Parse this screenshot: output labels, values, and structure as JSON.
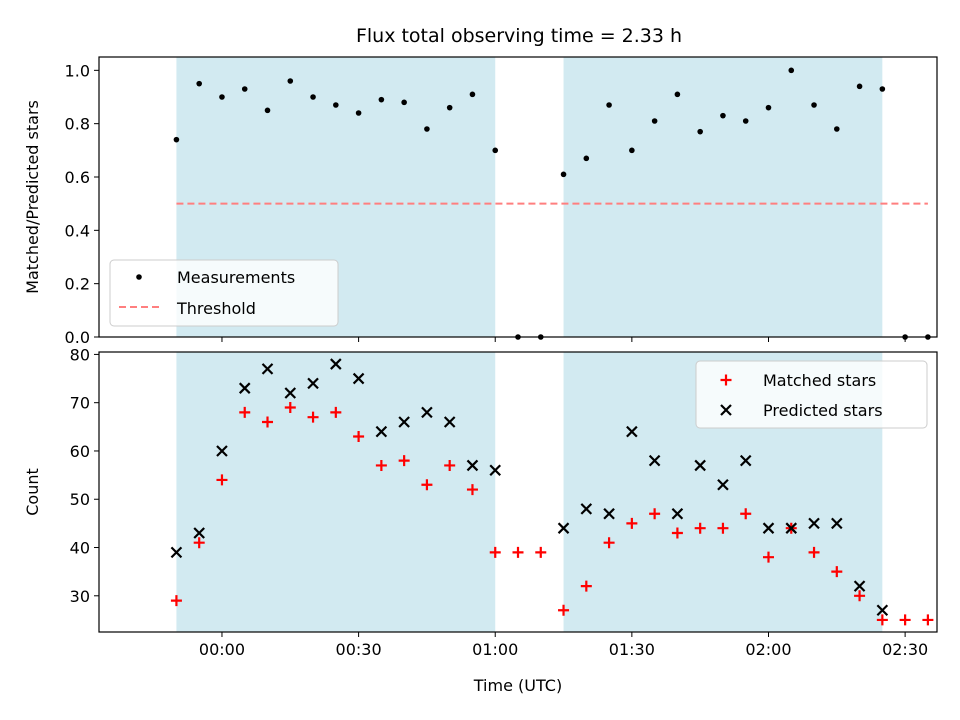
{
  "figure_title": "Flux total observing time = 2.33 h",
  "colors": {
    "shade": "#add8e6",
    "measurement": "#000000",
    "threshold": "#ff7f7f",
    "matched": "#ff0000",
    "predicted": "#000000"
  },
  "chart_data": [
    {
      "type": "scatter",
      "ylabel": "Matched/Predicted stars",
      "xlabel": "",
      "xlim": [
        "23:33",
        "02:37"
      ],
      "ylim": [
        0,
        1.05
      ],
      "yticks": [
        0.0,
        0.2,
        0.4,
        0.6,
        0.8,
        1.0
      ],
      "ytick_labels": [
        "0.0",
        "0.2",
        "0.4",
        "0.6",
        "0.8",
        "1.0"
      ],
      "grid": false,
      "legend_position": "lower-left",
      "shaded_intervals": [
        [
          "23:50",
          "01:00"
        ],
        [
          "01:15",
          "02:25"
        ]
      ],
      "series": [
        {
          "name": "Measurements",
          "marker": "dot",
          "x": [
            "23:50",
            "23:55",
            "00:00",
            "00:05",
            "00:10",
            "00:15",
            "00:20",
            "00:25",
            "00:30",
            "00:35",
            "00:40",
            "00:45",
            "00:50",
            "00:55",
            "01:00",
            "01:05",
            "01:10",
            "01:15",
            "01:20",
            "01:25",
            "01:30",
            "01:35",
            "01:40",
            "01:45",
            "01:50",
            "01:55",
            "02:00",
            "02:05",
            "02:10",
            "02:15",
            "02:20",
            "02:25",
            "02:30",
            "02:35"
          ],
          "y": [
            0.74,
            0.95,
            0.9,
            0.93,
            0.85,
            0.96,
            0.9,
            0.87,
            0.84,
            0.89,
            0.88,
            0.78,
            0.86,
            0.91,
            0.7,
            0.0,
            0.0,
            0.61,
            0.67,
            0.87,
            0.7,
            0.81,
            0.91,
            0.77,
            0.83,
            0.81,
            0.86,
            1.0,
            0.87,
            0.78,
            0.94,
            0.93,
            0.0,
            0.0
          ]
        },
        {
          "name": "Threshold",
          "marker": "dashed-line",
          "x": [
            "23:50",
            "02:35"
          ],
          "y": [
            0.5,
            0.5
          ]
        }
      ]
    },
    {
      "type": "scatter",
      "ylabel": "Count",
      "xlabel": "Time (UTC)",
      "xlim": [
        "23:33",
        "02:37"
      ],
      "ylim": [
        22.5,
        80.5
      ],
      "yticks": [
        30,
        40,
        50,
        60,
        70,
        80
      ],
      "ytick_labels": [
        "30",
        "40",
        "50",
        "60",
        "70",
        "80"
      ],
      "xticks": [
        "00:00",
        "00:30",
        "01:00",
        "01:30",
        "02:00",
        "02:30"
      ],
      "xtick_labels": [
        "00:00",
        "00:30",
        "01:00",
        "01:30",
        "02:00",
        "02:30"
      ],
      "grid": false,
      "legend_position": "upper-right",
      "shaded_intervals": [
        [
          "23:50",
          "01:00"
        ],
        [
          "01:15",
          "02:25"
        ]
      ],
      "series": [
        {
          "name": "Matched stars",
          "marker": "plus",
          "x": [
            "23:50",
            "23:55",
            "00:00",
            "00:05",
            "00:10",
            "00:15",
            "00:20",
            "00:25",
            "00:30",
            "00:35",
            "00:40",
            "00:45",
            "00:50",
            "00:55",
            "01:00",
            "01:05",
            "01:10",
            "01:15",
            "01:20",
            "01:25",
            "01:30",
            "01:35",
            "01:40",
            "01:45",
            "01:50",
            "01:55",
            "02:00",
            "02:05",
            "02:10",
            "02:15",
            "02:20",
            "02:25",
            "02:30",
            "02:35"
          ],
          "y": [
            29,
            41,
            54,
            68,
            66,
            69,
            67,
            68,
            63,
            57,
            58,
            53,
            57,
            52,
            39,
            39,
            39,
            27,
            32,
            41,
            45,
            47,
            43,
            44,
            44,
            47,
            38,
            44,
            39,
            35,
            30,
            25,
            25,
            25
          ]
        },
        {
          "name": "Predicted stars",
          "marker": "x",
          "x": [
            "23:50",
            "23:55",
            "00:00",
            "00:05",
            "00:10",
            "00:15",
            "00:20",
            "00:25",
            "00:30",
            "00:35",
            "00:40",
            "00:45",
            "00:50",
            "00:55",
            "01:00",
            "01:15",
            "01:20",
            "01:25",
            "01:30",
            "01:35",
            "01:40",
            "01:45",
            "01:50",
            "01:55",
            "02:00",
            "02:05",
            "02:10",
            "02:15",
            "02:20",
            "02:25"
          ],
          "y": [
            39,
            43,
            60,
            73,
            77,
            72,
            74,
            78,
            75,
            64,
            66,
            68,
            66,
            57,
            56,
            44,
            48,
            47,
            64,
            58,
            47,
            57,
            53,
            58,
            44,
            44,
            45,
            45,
            32,
            27
          ]
        }
      ]
    }
  ]
}
